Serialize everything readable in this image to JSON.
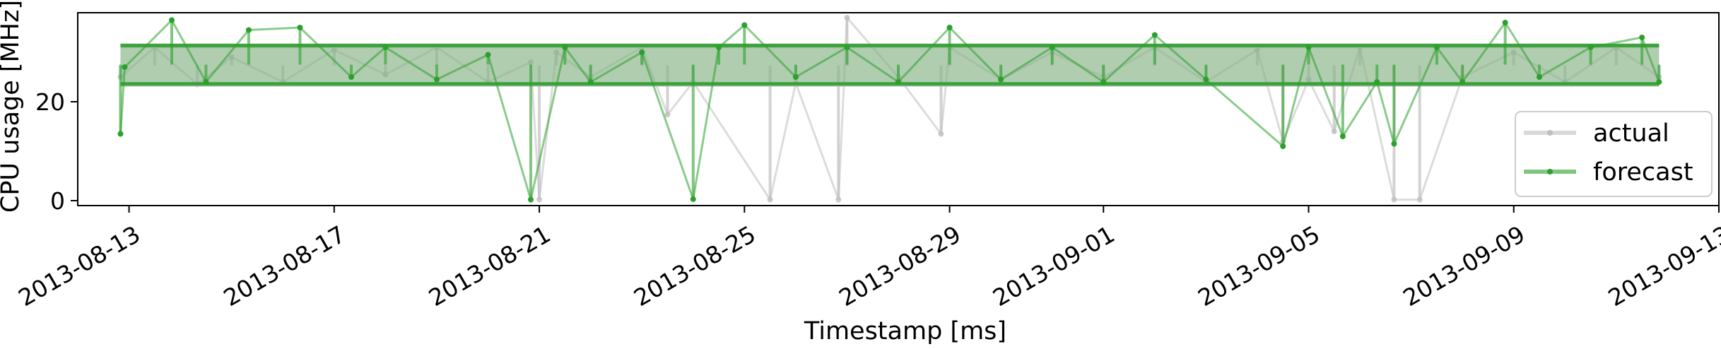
{
  "chart_data": {
    "type": "line",
    "title": "",
    "xlabel": "Timestamp [ms]",
    "ylabel": "CPU usage [MHz]",
    "x_type": "date",
    "xlim": [
      "2013-08-12T00:00",
      "2013-09-13T00:00"
    ],
    "ylim": [
      -1,
      38
    ],
    "x_ticks": [
      "2013-08-13",
      "2013-08-17",
      "2013-08-21",
      "2013-08-25",
      "2013-08-29",
      "2013-09-01",
      "2013-09-05",
      "2013-09-09",
      "2013-09-13"
    ],
    "y_ticks": [
      0,
      20
    ],
    "grid": false,
    "legend_position": "right",
    "series": [
      {
        "name": "actual",
        "color": "#bfbfbf",
        "base_band": [
          23.4,
          31.2
        ],
        "values": [
          [
            "2013-08-12T20:00",
            25.0
          ],
          [
            "2013-08-13T12:00",
            31.0
          ],
          [
            "2013-08-14T08:00",
            23.5
          ],
          [
            "2013-08-15T00:00",
            29.0
          ],
          [
            "2013-08-16T00:00",
            24.0
          ],
          [
            "2013-08-17T00:00",
            30.5
          ],
          [
            "2013-08-18T00:00",
            25.5
          ],
          [
            "2013-08-19T00:00",
            31.0
          ],
          [
            "2013-08-20T00:00",
            24.0
          ],
          [
            "2013-08-20T20:00",
            28.0
          ],
          [
            "2013-08-21T00:00",
            0.2
          ],
          [
            "2013-08-21T08:00",
            30.0
          ],
          [
            "2013-08-22T00:00",
            25.0
          ],
          [
            "2013-08-23T00:00",
            31.0
          ],
          [
            "2013-08-23T12:00",
            17.4
          ],
          [
            "2013-08-24T00:00",
            24.0
          ],
          [
            "2013-08-25T12:00",
            0.2
          ],
          [
            "2013-08-26T00:00",
            23.8
          ],
          [
            "2013-08-26T20:00",
            0.2
          ],
          [
            "2013-08-27T00:00",
            37.0
          ],
          [
            "2013-08-28T00:00",
            25.0
          ],
          [
            "2013-08-28T20:00",
            13.5
          ],
          [
            "2013-08-29T00:00",
            31.0
          ],
          [
            "2013-08-30T00:00",
            24.5
          ],
          [
            "2013-08-31T00:00",
            30.0
          ],
          [
            "2013-09-01T00:00",
            25.0
          ],
          [
            "2013-09-02T00:00",
            31.0
          ],
          [
            "2013-09-03T00:00",
            24.0
          ],
          [
            "2013-09-04T00:00",
            30.5
          ],
          [
            "2013-09-04T12:00",
            12.0
          ],
          [
            "2013-09-05T00:00",
            24.5
          ],
          [
            "2013-09-05T12:00",
            14.0
          ],
          [
            "2013-09-06T00:00",
            31.0
          ],
          [
            "2013-09-06T16:00",
            0.2
          ],
          [
            "2013-09-07T04:00",
            0.2
          ],
          [
            "2013-09-08T00:00",
            25.0
          ],
          [
            "2013-09-09T00:00",
            30.0
          ],
          [
            "2013-09-10T00:00",
            24.0
          ],
          [
            "2013-09-11T00:00",
            31.0
          ],
          [
            "2013-09-11T20:00",
            25.0
          ]
        ]
      },
      {
        "name": "forecast",
        "color": "#2ca02c",
        "base_band": [
          23.6,
          31.4
        ],
        "values": [
          [
            "2013-08-12T20:00",
            13.5
          ],
          [
            "2013-08-12T22:00",
            27.0
          ],
          [
            "2013-08-13T20:00",
            36.5
          ],
          [
            "2013-08-14T12:00",
            24.0
          ],
          [
            "2013-08-15T08:00",
            34.5
          ],
          [
            "2013-08-16T08:00",
            35.0
          ],
          [
            "2013-08-17T08:00",
            25.0
          ],
          [
            "2013-08-18T00:00",
            31.0
          ],
          [
            "2013-08-19T00:00",
            24.5
          ],
          [
            "2013-08-20T00:00",
            29.5
          ],
          [
            "2013-08-20T20:00",
            0.2
          ],
          [
            "2013-08-21T12:00",
            31.0
          ],
          [
            "2013-08-22T00:00",
            24.0
          ],
          [
            "2013-08-23T00:00",
            30.0
          ],
          [
            "2013-08-24T00:00",
            0.3
          ],
          [
            "2013-08-24T12:00",
            31.0
          ],
          [
            "2013-08-25T00:00",
            35.5
          ],
          [
            "2013-08-26T00:00",
            25.0
          ],
          [
            "2013-08-27T00:00",
            31.0
          ],
          [
            "2013-08-28T00:00",
            24.0
          ],
          [
            "2013-08-29T00:00",
            35.0
          ],
          [
            "2013-08-30T00:00",
            24.5
          ],
          [
            "2013-08-31T00:00",
            31.0
          ],
          [
            "2013-09-01T00:00",
            24.0
          ],
          [
            "2013-09-02T00:00",
            33.5
          ],
          [
            "2013-09-03T00:00",
            24.5
          ],
          [
            "2013-09-04T12:00",
            11.0
          ],
          [
            "2013-09-05T00:00",
            31.0
          ],
          [
            "2013-09-05T16:00",
            13.0
          ],
          [
            "2013-09-06T08:00",
            24.0
          ],
          [
            "2013-09-06T16:00",
            11.5
          ],
          [
            "2013-09-07T12:00",
            31.0
          ],
          [
            "2013-09-08T00:00",
            24.0
          ],
          [
            "2013-09-08T20:00",
            36.0
          ],
          [
            "2013-09-09T12:00",
            25.0
          ],
          [
            "2013-09-10T12:00",
            31.0
          ],
          [
            "2013-09-11T12:00",
            33.0
          ],
          [
            "2013-09-11T20:00",
            24.0
          ]
        ]
      }
    ]
  }
}
